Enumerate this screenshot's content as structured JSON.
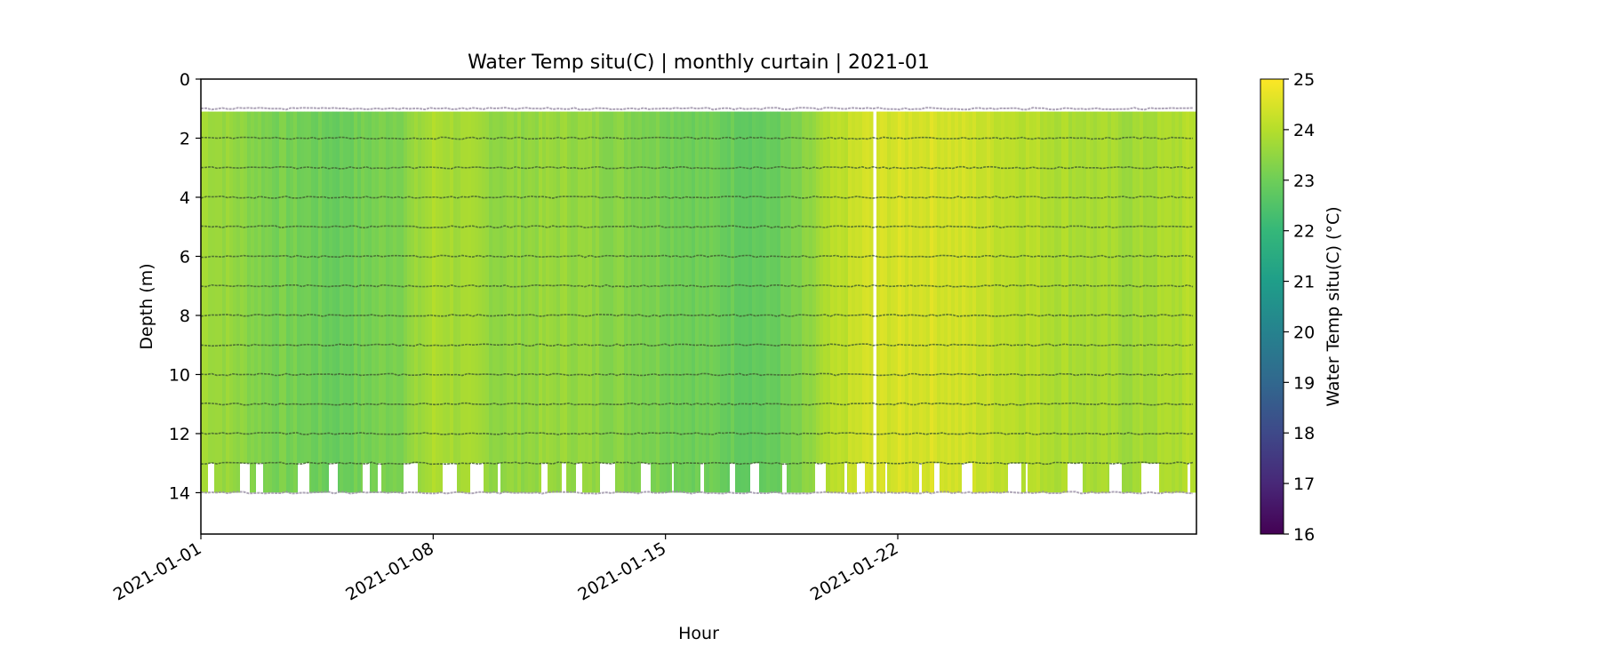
{
  "chart_data": {
    "type": "heatmap",
    "title": "Water Temp situ(C) | monthly curtain | 2021-01",
    "xlabel": "Hour",
    "ylabel": "Depth (m)",
    "x_range": [
      "2021-01-01",
      "2021-01-31"
    ],
    "x_ticks": [
      "2021-01-01",
      "2021-01-08",
      "2021-01-15",
      "2021-01-22"
    ],
    "y_range": [
      0,
      15.4
    ],
    "y_inverted": true,
    "y_ticks": [
      "0",
      "2",
      "4",
      "6",
      "8",
      "10",
      "12",
      "14"
    ],
    "y_tick_values": [
      0,
      2,
      4,
      6,
      8,
      10,
      12,
      14
    ],
    "colorbar": {
      "label": "Water Temp situ(C) (°C)",
      "colormap": "viridis",
      "range": [
        16,
        25
      ],
      "ticks": [
        "16",
        "17",
        "18",
        "19",
        "20",
        "21",
        "22",
        "23",
        "24",
        "25"
      ],
      "tick_values": [
        16,
        17,
        18,
        19,
        20,
        21,
        22,
        23,
        24,
        25
      ]
    },
    "sensor_depths_m": [
      1,
      2,
      3,
      4,
      5,
      6,
      7,
      8,
      9,
      10,
      11,
      12,
      13,
      14
    ],
    "data_depth_range_m": [
      1.1,
      14.0
    ],
    "gap_date": "2021-01-21",
    "temperature_profile": {
      "dates": [
        "2021-01-01",
        "2021-01-03",
        "2021-01-05",
        "2021-01-07",
        "2021-01-08",
        "2021-01-10",
        "2021-01-12",
        "2021-01-14",
        "2021-01-16",
        "2021-01-18",
        "2021-01-19",
        "2021-01-20",
        "2021-01-21",
        "2021-01-23",
        "2021-01-25",
        "2021-01-27",
        "2021-01-29",
        "2021-01-31"
      ],
      "values": [
        23.8,
        23.2,
        22.9,
        23.3,
        23.9,
        23.5,
        23.6,
        23.3,
        23.0,
        22.8,
        23.2,
        24.0,
        24.4,
        24.5,
        24.2,
        23.9,
        23.7,
        24.0
      ]
    }
  }
}
